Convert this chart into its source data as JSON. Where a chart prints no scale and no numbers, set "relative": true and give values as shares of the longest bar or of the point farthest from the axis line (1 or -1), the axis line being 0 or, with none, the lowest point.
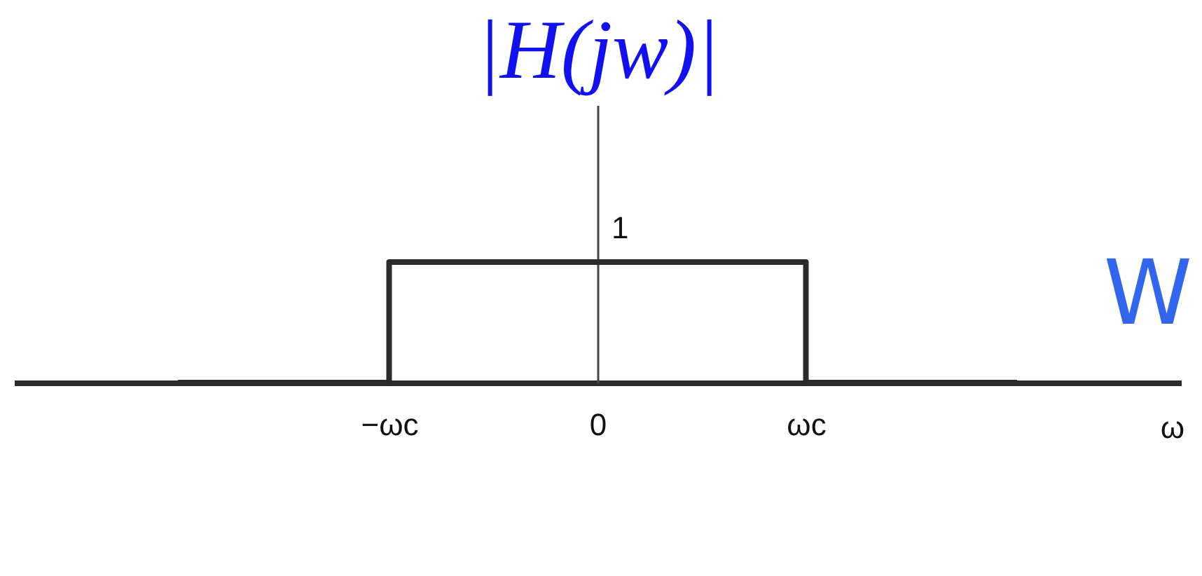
{
  "chart_data": {
    "type": "step",
    "relative": true,
    "ylabel": "|H(jw)|",
    "xlabel": "ω",
    "annotations": [
      {
        "text": "1",
        "x": "0",
        "y": 1
      },
      "W"
    ],
    "categories": [
      null,
      "−ωc",
      "0",
      "ωc",
      null
    ],
    "values": [
      0,
      1,
      1,
      0,
      0
    ],
    "color": "#2b2b2b"
  }
}
